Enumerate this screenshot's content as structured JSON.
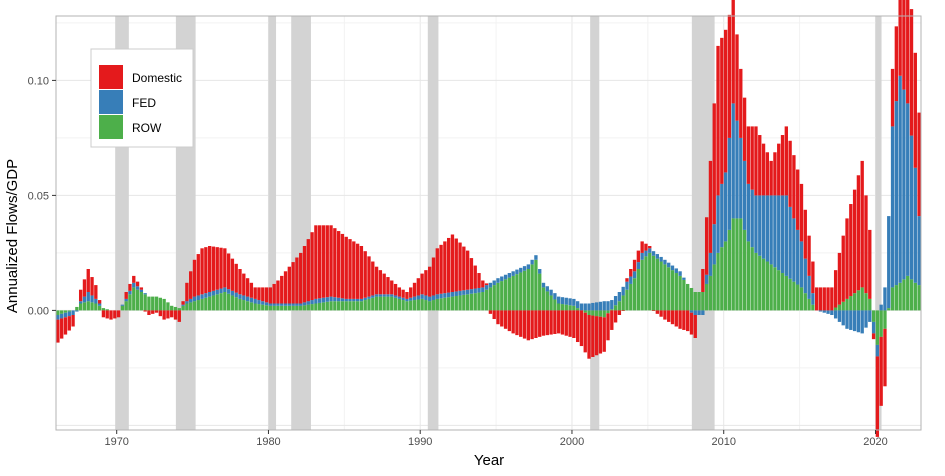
{
  "chart_data": {
    "type": "bar",
    "stacked": true,
    "title": "",
    "xlabel": "Year",
    "ylabel": "Annualized Flows/GDP",
    "xlim": [
      1966,
      2023
    ],
    "ylim": [
      -0.052,
      0.128
    ],
    "x_ticks": [
      1970,
      1980,
      1990,
      2000,
      2010,
      2020
    ],
    "x_tick_labels": [
      "1970",
      "1980",
      "1990",
      "2000",
      "2010",
      "2020"
    ],
    "y_ticks": [
      0.0,
      0.05,
      0.1
    ],
    "y_tick_labels": [
      "0.00",
      "0.05",
      "0.10"
    ],
    "grid": true,
    "legend": {
      "position": "top-left",
      "entries": [
        "Domestic",
        "FED",
        "ROW"
      ]
    },
    "series": [
      {
        "name": "Domestic",
        "color": "#E41A1C"
      },
      {
        "name": "FED",
        "color": "#377EB8"
      },
      {
        "name": "ROW",
        "color": "#4DAF4A"
      }
    ],
    "recessions": [
      [
        1969.9,
        1970.8
      ],
      [
        1973.9,
        1975.2
      ],
      [
        1980.0,
        1980.5
      ],
      [
        1981.5,
        1982.8
      ],
      [
        1990.5,
        1991.2
      ],
      [
        2001.2,
        2001.8
      ],
      [
        2007.9,
        2009.4
      ],
      [
        2020.0,
        2020.4
      ]
    ],
    "keypoints": {
      "x": [
        1966.0,
        1967.0,
        1967.5,
        1968.0,
        1968.5,
        1969.0,
        1969.5,
        1970.0,
        1970.5,
        1971.0,
        1971.5,
        1972.0,
        1972.5,
        1973.0,
        1973.5,
        1974.0,
        1974.5,
        1975.0,
        1975.5,
        1976.0,
        1977.0,
        1978.0,
        1979.0,
        1980.0,
        1980.5,
        1981.0,
        1982.0,
        1983.0,
        1984.0,
        1985.0,
        1986.0,
        1987.0,
        1988.0,
        1988.5,
        1989.0,
        1990.0,
        1990.5,
        1991.0,
        1992.0,
        1993.0,
        1994.0,
        1995.0,
        1996.0,
        1997.0,
        1997.5,
        1998.0,
        1999.0,
        2000.0,
        2001.0,
        2002.0,
        2003.0,
        2004.0,
        2004.5,
        2005.0,
        2006.0,
        2007.0,
        2008.0,
        2008.5,
        2009.0,
        2009.5,
        2010.0,
        2010.5,
        2011.0,
        2011.5,
        2012.0,
        2013.0,
        2014.0,
        2015.0,
        2016.0,
        2017.0,
        2018.0,
        2019.0,
        2019.5,
        2020.0,
        2020.5,
        2021.0,
        2021.5,
        2022.0,
        2022.5,
        2023.0
      ],
      "Domestic": [
        -0.01,
        -0.005,
        0.005,
        0.01,
        0.006,
        -0.003,
        -0.004,
        -0.003,
        0.003,
        0.003,
        0.001,
        -0.002,
        -0.001,
        -0.004,
        -0.003,
        -0.005,
        0.008,
        0.016,
        0.02,
        0.02,
        0.017,
        0.011,
        0.005,
        0.007,
        0.01,
        0.014,
        0.022,
        0.032,
        0.031,
        0.027,
        0.023,
        0.012,
        0.006,
        0.004,
        0.003,
        0.009,
        0.013,
        0.02,
        0.025,
        0.017,
        0.003,
        -0.006,
        -0.01,
        -0.013,
        -0.012,
        -0.011,
        -0.01,
        -0.012,
        -0.019,
        -0.015,
        -0.002,
        0.005,
        0.005,
        0.001,
        -0.004,
        -0.008,
        -0.01,
        0.01,
        0.04,
        0.065,
        0.062,
        0.045,
        0.03,
        0.025,
        0.03,
        0.015,
        0.03,
        0.025,
        0.01,
        0.01,
        0.035,
        0.055,
        0.03,
        -0.035,
        -0.025,
        0.025,
        0.04,
        0.06,
        0.05,
        0.04
      ],
      "FED": [
        -0.002,
        -0.002,
        0.001,
        0.004,
        0.002,
        0.0,
        0.0,
        0.0,
        0.001,
        0.002,
        0.001,
        0.0,
        0.0,
        0.0,
        0.0,
        0.0,
        0.001,
        0.002,
        0.002,
        0.002,
        0.002,
        0.002,
        0.002,
        0.001,
        0.001,
        0.001,
        0.001,
        0.002,
        0.002,
        0.001,
        0.001,
        0.001,
        0.001,
        0.001,
        0.001,
        0.002,
        0.002,
        0.002,
        0.002,
        0.002,
        0.002,
        0.002,
        0.002,
        0.002,
        0.002,
        0.002,
        0.003,
        0.003,
        0.003,
        0.004,
        0.004,
        0.003,
        0.003,
        0.002,
        0.002,
        0.002,
        -0.002,
        -0.002,
        0.01,
        0.025,
        0.03,
        0.05,
        0.035,
        0.025,
        0.025,
        0.03,
        0.035,
        0.02,
        0.0,
        -0.002,
        -0.008,
        -0.01,
        -0.005,
        -0.005,
        0.01,
        0.07,
        0.09,
        0.075,
        0.05,
        0.01
      ],
      "ROW": [
        -0.002,
        0.0,
        0.003,
        0.004,
        0.003,
        0.001,
        0.0,
        0.0,
        0.004,
        0.01,
        0.008,
        0.006,
        0.006,
        0.005,
        0.002,
        0.001,
        0.003,
        0.004,
        0.005,
        0.006,
        0.008,
        0.005,
        0.003,
        0.002,
        0.002,
        0.002,
        0.002,
        0.003,
        0.004,
        0.004,
        0.004,
        0.006,
        0.006,
        0.005,
        0.004,
        0.005,
        0.004,
        0.005,
        0.006,
        0.007,
        0.008,
        0.012,
        0.015,
        0.018,
        0.022,
        0.01,
        0.003,
        0.002,
        -0.002,
        -0.003,
        0.004,
        0.014,
        0.022,
        0.025,
        0.02,
        0.015,
        0.008,
        0.008,
        0.015,
        0.025,
        0.03,
        0.04,
        0.04,
        0.03,
        0.025,
        0.02,
        0.015,
        0.01,
        0.0,
        0.0,
        0.005,
        0.01,
        0.005,
        -0.015,
        -0.008,
        0.01,
        0.012,
        0.015,
        0.012,
        0.01
      ]
    }
  }
}
